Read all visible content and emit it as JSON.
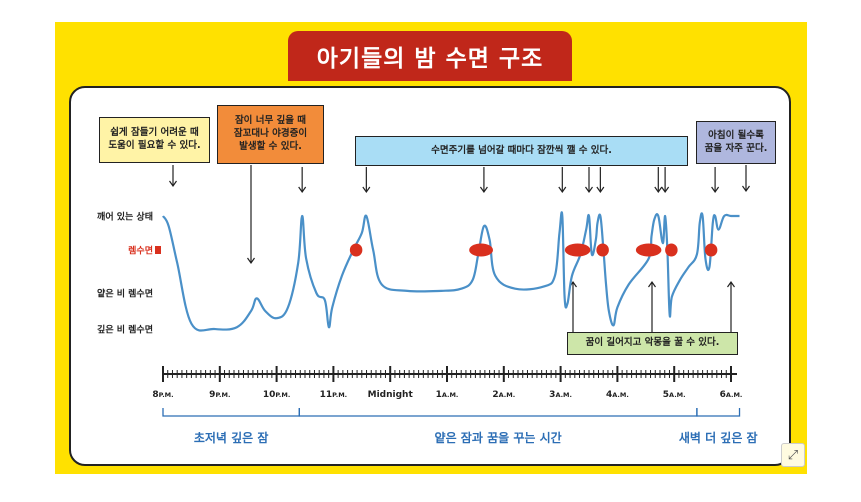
{
  "title": "아기들의 밤 수면 구조",
  "colors": {
    "frame": "#FFE100",
    "banner": "#C0271A",
    "curve": "#4A90C8",
    "rem": "#D9301E",
    "axis": "#222222",
    "phase": "#2C6EB5"
  },
  "annotations": [
    {
      "id": "early",
      "text": "쉽게 잠들기 어려운 때\n도움이 필요할 수 있다.",
      "color": "#FFF3A6"
    },
    {
      "id": "deep",
      "text": "잠이 너무 깊을 때\n잠꼬대나 야경증이\n발생할 수 있다.",
      "color": "#F28C3A"
    },
    {
      "id": "cycle",
      "text": "수면주기를 넘어갈 때마다 잠깐씩 깰 수 있다.",
      "color": "#A9DDF5"
    },
    {
      "id": "morning",
      "text": "아침이 될수록\n꿈을 자주 꾼다.",
      "color": "#AFB7DE"
    },
    {
      "id": "dream",
      "text": "꿈이 길어지고 악몽을 꿀 수 있다.",
      "color": "#CDE6A9"
    }
  ],
  "expand_icon": "expand-icon",
  "chart_data": {
    "type": "line",
    "x_ticks": [
      {
        "hour": 20,
        "label": "8",
        "suffix": "P.M."
      },
      {
        "hour": 21,
        "label": "9",
        "suffix": "P.M."
      },
      {
        "hour": 22,
        "label": "10",
        "suffix": "P.M."
      },
      {
        "hour": 23,
        "label": "11",
        "suffix": "P.M."
      },
      {
        "hour": 24,
        "label": "Midnight",
        "suffix": ""
      },
      {
        "hour": 25,
        "label": "1",
        "suffix": "A.M."
      },
      {
        "hour": 26,
        "label": "2",
        "suffix": "A.M."
      },
      {
        "hour": 27,
        "label": "3",
        "suffix": "A.M."
      },
      {
        "hour": 28,
        "label": "4",
        "suffix": "A.M."
      },
      {
        "hour": 29,
        "label": "5",
        "suffix": "A.M."
      },
      {
        "hour": 30,
        "label": "6",
        "suffix": "A.M."
      }
    ],
    "y_levels": [
      {
        "level": 3,
        "label": "깨어 있는 상태"
      },
      {
        "level": 2,
        "label": "렘수면"
      },
      {
        "level": 1,
        "label": "얕은 비 렘수면"
      },
      {
        "level": 0,
        "label": "깊은 비 렘수면"
      }
    ],
    "ylim": [
      0,
      3
    ],
    "series": [
      {
        "points": [
          [
            20.0,
            3.0
          ],
          [
            20.1,
            2.7
          ],
          [
            20.25,
            1.7
          ],
          [
            20.5,
            0.15
          ],
          [
            20.9,
            0.0
          ],
          [
            21.3,
            0.05
          ],
          [
            21.55,
            0.5
          ],
          [
            21.65,
            0.85
          ],
          [
            21.8,
            0.5
          ],
          [
            22.0,
            0.3
          ],
          [
            22.2,
            0.6
          ],
          [
            22.38,
            1.7
          ],
          [
            22.45,
            3.0
          ],
          [
            22.52,
            1.8
          ],
          [
            22.7,
            1.0
          ],
          [
            22.85,
            0.8
          ],
          [
            22.92,
            0.05
          ],
          [
            22.98,
            0.6
          ],
          [
            23.15,
            1.4
          ],
          [
            23.35,
            2.0
          ],
          [
            23.5,
            2.5
          ],
          [
            23.58,
            3.0
          ],
          [
            23.7,
            2.0
          ],
          [
            23.85,
            1.2
          ],
          [
            24.3,
            1.05
          ],
          [
            24.9,
            1.05
          ],
          [
            25.25,
            1.1
          ],
          [
            25.45,
            1.3
          ],
          [
            25.55,
            1.9
          ],
          [
            25.65,
            2.7
          ],
          [
            25.75,
            2.3
          ],
          [
            25.85,
            1.4
          ],
          [
            26.2,
            1.1
          ],
          [
            26.7,
            1.15
          ],
          [
            26.9,
            1.4
          ],
          [
            26.98,
            2.5
          ],
          [
            27.03,
            3.0
          ],
          [
            27.07,
            0.9
          ],
          [
            27.12,
            0.7
          ],
          [
            27.2,
            1.4
          ],
          [
            27.35,
            1.9
          ],
          [
            27.45,
            2.6
          ],
          [
            27.5,
            3.0
          ],
          [
            27.55,
            1.9
          ],
          [
            27.62,
            2.3
          ],
          [
            27.65,
            2.8
          ],
          [
            27.7,
            3.0
          ],
          [
            27.75,
            2.1
          ],
          [
            27.8,
            1.2
          ],
          [
            27.85,
            0.5
          ],
          [
            27.93,
            0.1
          ],
          [
            28.0,
            0.6
          ],
          [
            28.2,
            1.2
          ],
          [
            28.55,
            1.8
          ],
          [
            28.6,
            2.4
          ],
          [
            28.65,
            2.9
          ],
          [
            28.72,
            3.0
          ],
          [
            28.8,
            2.2
          ],
          [
            28.84,
            3.0
          ],
          [
            28.88,
            2.0
          ],
          [
            28.92,
            0.4
          ],
          [
            28.96,
            0.9
          ],
          [
            29.1,
            1.3
          ],
          [
            29.25,
            1.6
          ],
          [
            29.4,
            1.9
          ],
          [
            29.45,
            2.8
          ],
          [
            29.5,
            3.0
          ],
          [
            29.55,
            1.8
          ],
          [
            29.62,
            1.6
          ],
          [
            29.68,
            2.8
          ],
          [
            29.72,
            3.0
          ],
          [
            29.78,
            2.6
          ],
          [
            29.88,
            3.0
          ],
          [
            30.0,
            3.0
          ],
          [
            30.15,
            3.0
          ]
        ]
      }
    ],
    "rem_markers": [
      {
        "hour": 23.4,
        "level": 2.0,
        "width": 0.22
      },
      {
        "hour": 25.6,
        "level": 2.0,
        "width": 0.42
      },
      {
        "hour": 27.3,
        "level": 2.0,
        "width": 0.45
      },
      {
        "hour": 27.74,
        "level": 2.0,
        "width": 0.22
      },
      {
        "hour": 28.55,
        "level": 2.0,
        "width": 0.45
      },
      {
        "hour": 28.95,
        "level": 2.0,
        "width": 0.22
      },
      {
        "hour": 29.65,
        "level": 2.0,
        "width": 0.22
      }
    ],
    "wake_arrows": [
      22.45,
      23.58,
      25.65,
      27.03,
      27.5,
      27.7,
      28.72,
      28.84,
      29.72
    ],
    "phases": [
      {
        "label": "초저녁 깊은 잠",
        "start": 20.0,
        "end": 22.4
      },
      {
        "label": "얕은 잠과 꿈을 꾸는 시간",
        "start": 22.4,
        "end": 29.4
      },
      {
        "label": "새벽 더 깊은 잠",
        "start": 29.4,
        "end": 30.15
      }
    ]
  }
}
